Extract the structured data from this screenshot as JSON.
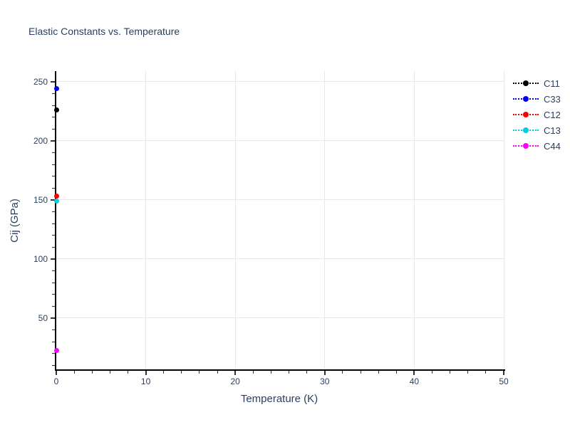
{
  "title": "Elastic Constants vs. Temperature",
  "colors": {
    "text": "#2a3f5f",
    "axis_line": "#000000",
    "gridline": "#e9e9e9",
    "tick": "#333333",
    "background": "#ffffff"
  },
  "chart_data": {
    "type": "scatter",
    "title": "Elastic Constants vs. Temperature",
    "xlabel": "Temperature (K)",
    "ylabel": "Cij (GPa)",
    "xlim": [
      0,
      50
    ],
    "ylim": [
      6.5,
      259
    ],
    "x_major_ticks": [
      0,
      10,
      20,
      30,
      40,
      50
    ],
    "x_minor_step": 2,
    "y_major_ticks": [
      50,
      100,
      150,
      200,
      250
    ],
    "y_minor_step": 10,
    "grid": true,
    "line_dash": "dot",
    "marker": "circle",
    "legend_position": "outside-top-right",
    "series": [
      {
        "name": "C11",
        "color": "#000000",
        "x": [
          0
        ],
        "y": [
          226
        ]
      },
      {
        "name": "C33",
        "color": "#0000ff",
        "x": [
          0
        ],
        "y": [
          244.5
        ]
      },
      {
        "name": "C12",
        "color": "#ff0000",
        "x": [
          0
        ],
        "y": [
          153
        ]
      },
      {
        "name": "C13",
        "color": "#00cfe0",
        "x": [
          0
        ],
        "y": [
          149
        ]
      },
      {
        "name": "C44",
        "color": "#ff00ff",
        "x": [
          0
        ],
        "y": [
          22.5
        ]
      }
    ]
  }
}
